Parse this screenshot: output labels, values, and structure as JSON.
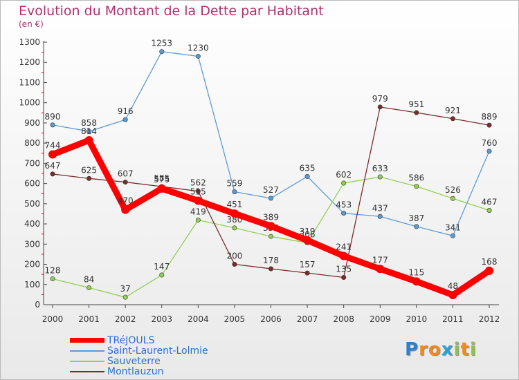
{
  "title": "Evolution du Montant de la Dette par Habitant",
  "subtitle": "(en €)",
  "chart_data": {
    "type": "line",
    "title": "Evolution du Montant de la Dette par Habitant",
    "subtitle": "(en €)",
    "x": [
      "2000",
      "2001",
      "2002",
      "2003",
      "2004",
      "2005",
      "2006",
      "2007",
      "2008",
      "2009",
      "2010",
      "2011",
      "2012"
    ],
    "ylim": [
      0,
      1300
    ],
    "yticks": [
      0,
      100,
      200,
      300,
      400,
      500,
      600,
      700,
      800,
      900,
      1000,
      1100,
      1200,
      1300
    ],
    "grid": false,
    "legend_position": "bottom-left",
    "series": [
      {
        "name": "TRéJOULS",
        "color": "#ff0000",
        "values": [
          744,
          814,
          470,
          575,
          515,
          451,
          389,
          319,
          241,
          177,
          115,
          48,
          168
        ]
      },
      {
        "name": "Saint-Laurent-Lolmie",
        "color": "#5b9bd5",
        "values": [
          890,
          858,
          916,
          1253,
          1230,
          559,
          527,
          635,
          453,
          437,
          387,
          341,
          760
        ]
      },
      {
        "name": "Sauveterre",
        "color": "#92d050",
        "values": [
          128,
          84,
          37,
          147,
          419,
          380,
          338,
          306,
          602,
          633,
          586,
          526,
          467
        ]
      },
      {
        "name": "Montlauzun",
        "color": "#7b2c2c",
        "values": [
          647,
          625,
          607,
          585,
          562,
          200,
          178,
          157,
          135,
          979,
          951,
          921,
          889
        ]
      }
    ]
  },
  "logo": {
    "letters": [
      {
        "ch": "P",
        "color": "#2f7fd1"
      },
      {
        "ch": "r",
        "color": "#f08a1a"
      },
      {
        "ch": "o",
        "color": "#f08a1a"
      },
      {
        "ch": "x",
        "color": "#2f9fd1"
      },
      {
        "ch": "i",
        "color": "#8cc63f"
      },
      {
        "ch": "t",
        "color": "#f08a1a"
      },
      {
        "ch": "i",
        "color": "#8cc63f"
      }
    ]
  }
}
